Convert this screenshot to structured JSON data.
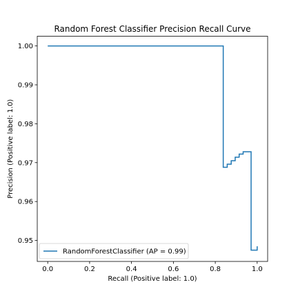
{
  "chart_data": {
    "type": "line",
    "title": "Random Forest Classifier Precision Recall Curve",
    "xlabel": "Recall (Positive label: 1.0)",
    "ylabel": "Precision (Positive label: 1.0)",
    "xlim": [
      -0.05,
      1.05
    ],
    "ylim": [
      0.9446,
      1.0025
    ],
    "x_ticks": [
      0.0,
      0.2,
      0.4,
      0.6,
      0.8,
      1.0
    ],
    "x_tick_labels": [
      "0.0",
      "0.2",
      "0.4",
      "0.6",
      "0.8",
      "1.0"
    ],
    "y_ticks": [
      0.95,
      0.96,
      0.97,
      0.98,
      0.99,
      1.0
    ],
    "y_tick_labels": [
      "0.95",
      "0.96",
      "0.97",
      "0.98",
      "0.99",
      "1.00"
    ],
    "grid": false,
    "legend_location": "lower-left",
    "series": [
      {
        "name": "RandomForestClassifier (AP = 0.99)",
        "color": "#1f77b4",
        "drawstyle": "steps-post",
        "x": [
          0.0,
          0.838,
          0.838,
          0.857,
          0.876,
          0.895,
          0.914,
          0.933,
          0.952,
          0.971,
          0.971,
          1.0
        ],
        "y": [
          1.0,
          1.0,
          0.9688,
          0.9696,
          0.9705,
          0.9714,
          0.9722,
          0.9728,
          0.9728,
          0.9728,
          0.9475,
          0.9485
        ]
      }
    ]
  }
}
